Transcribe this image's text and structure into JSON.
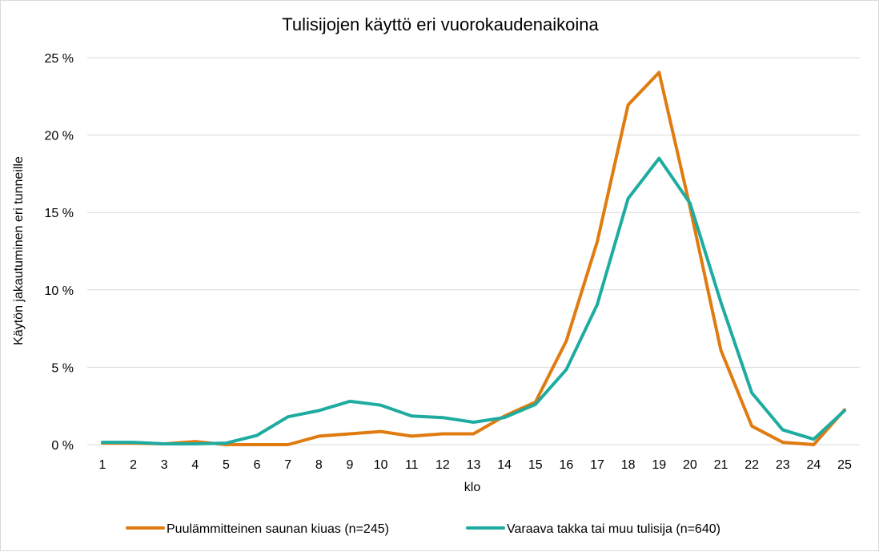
{
  "chart_data": {
    "type": "line",
    "title": "Tulisijojen käyttö eri vuorokaudenaikoina",
    "xlabel": "klo",
    "ylabel": "Käytön jakautuminen eri tunneille",
    "x": [
      1,
      2,
      3,
      4,
      5,
      6,
      7,
      8,
      9,
      10,
      11,
      12,
      13,
      14,
      15,
      16,
      17,
      18,
      19,
      20,
      21,
      22,
      23,
      24,
      25
    ],
    "ylim": [
      0,
      25
    ],
    "yticks": [
      0,
      5,
      10,
      15,
      20,
      25
    ],
    "ytick_labels": [
      "0 %",
      "5 %",
      "10 %",
      "15 %",
      "20 %",
      "25 %"
    ],
    "grid": true,
    "legend_position": "bottom",
    "series": [
      {
        "name": "Puulämmitteinen saunan kiuas (n=245)",
        "color": "#e07b10",
        "values": [
          0.1,
          0.1,
          0.05,
          0.2,
          0.0,
          0.0,
          0.0,
          0.55,
          0.7,
          0.85,
          0.55,
          0.7,
          0.7,
          1.85,
          2.75,
          6.7,
          13.1,
          21.95,
          24.05,
          15.35,
          6.1,
          1.2,
          0.15,
          0.0,
          2.25
        ]
      },
      {
        "name": "Varaava takka tai muu tulisija (n=640)",
        "color": "#1eaba0",
        "values": [
          0.15,
          0.15,
          0.05,
          0.05,
          0.1,
          0.6,
          1.8,
          2.2,
          2.8,
          2.55,
          1.85,
          1.75,
          1.45,
          1.75,
          2.6,
          4.85,
          9.05,
          15.9,
          18.5,
          15.6,
          9.2,
          3.35,
          0.95,
          0.35,
          2.2
        ]
      }
    ]
  }
}
